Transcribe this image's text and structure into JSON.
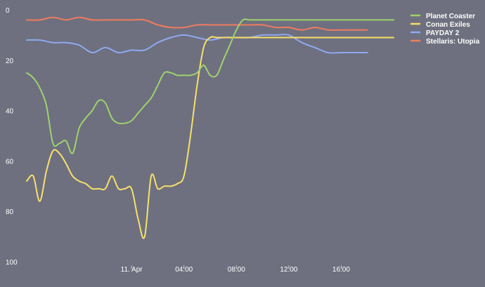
{
  "chart_data": {
    "type": "line",
    "y_inverted": true,
    "ylim": [
      0,
      100
    ],
    "y_ticks": [
      "0",
      "20",
      "40",
      "60",
      "80",
      "100"
    ],
    "x_ticks": [
      {
        "label": "11. Apr",
        "x": 9
      },
      {
        "label": "04:00",
        "x": 13
      },
      {
        "label": "08:00",
        "x": 17
      },
      {
        "label": "12:00",
        "x": 21
      },
      {
        "label": "16:00",
        "x": 25
      }
    ],
    "x_range": [
      1,
      29
    ],
    "grid": false,
    "legend_position": "top-right",
    "series": [
      {
        "name": "Planet Coaster",
        "color": "#9ed26d",
        "x": [
          1,
          1.5,
          2,
          2.5,
          3,
          3.5,
          4,
          4.5,
          5,
          5.5,
          6,
          6.5,
          7,
          7.5,
          8,
          8.5,
          9,
          9.5,
          10,
          10.5,
          11,
          11.5,
          12,
          12.5,
          13,
          13.5,
          14,
          14.5,
          15,
          15.5,
          16,
          16.5,
          17,
          17.5,
          18,
          18.5,
          19,
          19.5,
          20,
          20.5,
          21,
          21.5,
          22,
          22.5,
          23,
          23.5,
          24,
          24.5,
          25,
          25.5,
          26,
          26.5,
          27,
          27.5,
          28,
          28.5,
          29
        ],
        "values": [
          25,
          27,
          31,
          38,
          53,
          53,
          52,
          57,
          47,
          43,
          40,
          36,
          37,
          43,
          45,
          45,
          44,
          41,
          38,
          35,
          30,
          25,
          25,
          26,
          26,
          26,
          25,
          22,
          26,
          26,
          20,
          14,
          8,
          4,
          4,
          4,
          4,
          4,
          4,
          4,
          4,
          4,
          4,
          4,
          4,
          4,
          4,
          4,
          4,
          4,
          4,
          4,
          4,
          4,
          4,
          4,
          4
        ]
      },
      {
        "name": "Conan Exiles",
        "color": "#f7e06a",
        "x": [
          1,
          1.5,
          2,
          2.5,
          3,
          3.5,
          4,
          4.5,
          5,
          5.5,
          6,
          6.5,
          7,
          7.5,
          8,
          8.5,
          9,
          9.5,
          10,
          10.5,
          11,
          11.5,
          12,
          12.5,
          13,
          13.5,
          14,
          14.5,
          15,
          15.5,
          16,
          16.5,
          17,
          17.5,
          18,
          18.5,
          19,
          19.5,
          20,
          20.5,
          21,
          21.5,
          22,
          22.5,
          23,
          23.5,
          24,
          24.5,
          25,
          25.5,
          26,
          26.5,
          27,
          27.5,
          28,
          28.5,
          29
        ],
        "values": [
          68,
          66,
          76,
          64,
          56,
          57,
          61,
          66,
          68,
          69,
          71,
          71,
          71,
          66,
          71,
          71,
          71,
          83,
          90,
          66,
          71,
          70,
          70,
          69,
          66,
          50,
          30,
          15,
          11,
          11,
          11,
          11,
          11,
          11,
          11,
          11,
          11,
          11,
          11,
          11,
          11,
          11,
          11,
          11,
          11,
          11,
          11,
          11,
          11,
          11,
          11,
          11,
          11,
          11,
          11,
          11,
          11
        ]
      },
      {
        "name": "PAYDAY 2",
        "color": "#8ea9ef",
        "x": [
          1,
          2,
          3,
          4,
          5,
          6,
          7,
          8,
          9,
          10,
          11,
          12,
          13,
          14,
          15,
          16,
          17,
          18,
          19,
          20,
          21,
          22,
          23,
          24,
          25,
          26,
          27
        ],
        "values": [
          12,
          12,
          13,
          13,
          14,
          17,
          15,
          17,
          16,
          16,
          13,
          11,
          10,
          11,
          12,
          11,
          11,
          11,
          10,
          10,
          10,
          13,
          15,
          17,
          17,
          17,
          17
        ]
      },
      {
        "name": "Stellaris: Utopia",
        "color": "#ef7c5f",
        "x": [
          1,
          2,
          3,
          4,
          5,
          6,
          7,
          8,
          9,
          10,
          11,
          12,
          13,
          14,
          15,
          16,
          17,
          18,
          19,
          20,
          21,
          22,
          23,
          24,
          25,
          26,
          27
        ],
        "values": [
          4,
          4,
          3,
          4,
          3,
          4,
          4,
          4,
          4,
          4,
          6,
          7,
          7,
          6,
          6,
          6,
          6,
          6,
          6,
          7,
          7,
          8,
          7,
          8,
          8,
          8,
          8
        ]
      }
    ]
  }
}
